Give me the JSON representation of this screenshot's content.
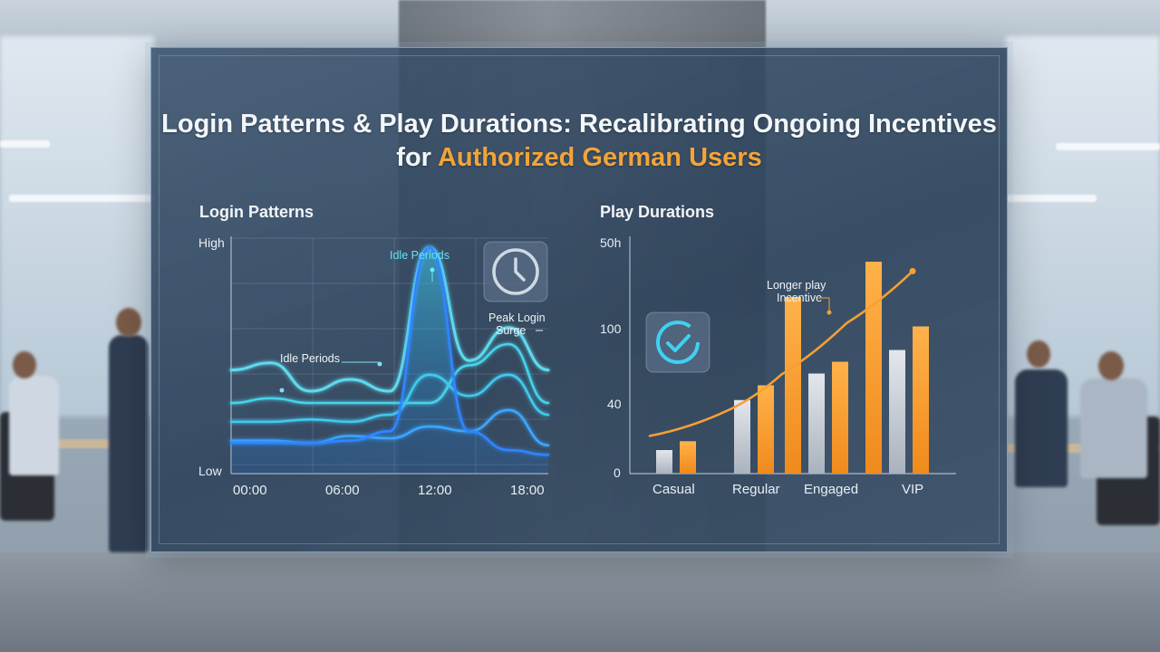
{
  "title": {
    "main": "Login Patterns & Play Durations: Recalibrating Ongoing Incentives for",
    "highlight": "Authorized German Users"
  },
  "colors": {
    "accent": "#f2a43a",
    "cyan": "#43d6ec",
    "blue": "#3aa6ff",
    "gray_bar": "#c9ced6",
    "orange_bar": "#f5a034"
  },
  "icons": {
    "login_chart": "clock-icon",
    "play_chart": "check-circle-icon"
  },
  "chart_data": [
    {
      "type": "line",
      "title": "Login Patterns",
      "x_ticks": [
        "00:00",
        "06:00",
        "12:00",
        "18:00"
      ],
      "y_ticks": [
        "Low",
        "High"
      ],
      "grid": true,
      "series": [
        {
          "values": [
            0.44,
            0.47,
            0.35,
            0.4,
            0.35,
            0.96,
            0.48,
            0.62,
            0.44
          ]
        },
        {
          "values": [
            0.3,
            0.32,
            0.3,
            0.3,
            0.3,
            0.3,
            0.46,
            0.55,
            0.3
          ]
        },
        {
          "values": [
            0.22,
            0.22,
            0.23,
            0.22,
            0.25,
            0.42,
            0.33,
            0.42,
            0.25
          ]
        },
        {
          "values": [
            0.14,
            0.14,
            0.13,
            0.16,
            0.15,
            0.2,
            0.18,
            0.27,
            0.12
          ]
        },
        {
          "values": [
            0.13,
            0.13,
            0.13,
            0.14,
            0.18,
            0.96,
            0.18,
            0.1,
            0.08
          ]
        }
      ],
      "annotations": [
        {
          "text": "Idle Periods",
          "x": 0.5
        },
        {
          "text": "Idle Periods",
          "x": 0.2
        },
        {
          "text": "Peak Login Surge",
          "x": 0.92
        }
      ]
    },
    {
      "type": "bar",
      "title": "Play Durations",
      "categories": [
        "Casual",
        "Regular",
        "Engaged",
        "VIP"
      ],
      "y_ticks": [
        "0",
        "40",
        "100",
        "50h"
      ],
      "series": [
        {
          "values": [
            8,
            25,
            34,
            42
          ]
        },
        {
          "values": [
            11,
            30,
            38,
            50
          ]
        },
        {
          "values": [
            22,
            45,
            60,
            72
          ]
        }
      ],
      "trend": [
        {
          "x": 0.0,
          "y": 16
        },
        {
          "x": 0.3,
          "y": 27
        },
        {
          "x": 0.5,
          "y": 42
        },
        {
          "x": 0.75,
          "y": 64
        },
        {
          "x": 1.0,
          "y": 86
        }
      ],
      "annotations": [
        {
          "text": "Longer play Incentive"
        }
      ]
    }
  ],
  "login_chart": {
    "label": "Login Patterns",
    "y_high": "High",
    "y_low": "Low",
    "x_labels": [
      "00:00",
      "06:00",
      "12:00",
      "18:00"
    ],
    "ann_idle_top": "Idle Periods",
    "ann_idle_left": "Idle Periods",
    "ann_peak_1": "Peak Login",
    "ann_peak_2": "Surge"
  },
  "play_chart": {
    "label": "Play Durations",
    "y_labels": [
      "50h",
      "100",
      "40",
      "0"
    ],
    "x_labels": [
      "Casual",
      "Regular",
      "Engaged",
      "VIP"
    ],
    "ann_1": "Longer play",
    "ann_2": "Incentive"
  }
}
